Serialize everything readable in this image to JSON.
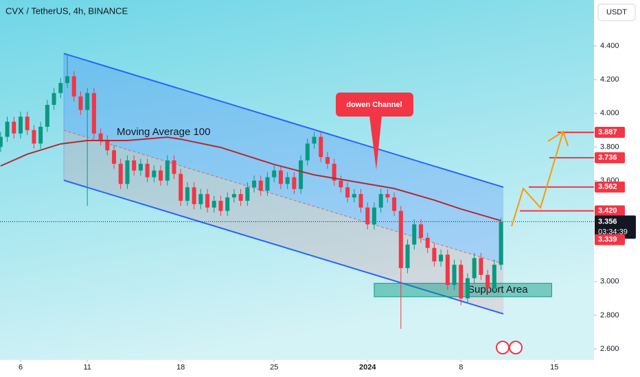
{
  "chart_data": {
    "type": "candlestick",
    "title": "CVX / TetherUS, 4h, BINANCE",
    "currency": "USDT",
    "up_color": "#089981",
    "down_color": "#f23645",
    "grid": false,
    "xlim": [
      -1.544,
      42.97
    ],
    "ylim": [
      2.535,
      4.673
    ],
    "xticks": [
      {
        "value": 0,
        "label": "6"
      },
      {
        "value": 5,
        "label": "11"
      },
      {
        "value": 12,
        "label": "18"
      },
      {
        "value": 19,
        "label": "25"
      },
      {
        "value": 26,
        "label": "2024"
      },
      {
        "value": 33,
        "label": "8"
      },
      {
        "value": 40,
        "label": "15"
      }
    ],
    "yticks": [
      {
        "value": 4.4,
        "label": "4.400"
      },
      {
        "value": 4.2,
        "label": "4.200"
      },
      {
        "value": 4.0,
        "label": "4.000"
      },
      {
        "value": 3.8,
        "label": "3.800"
      },
      {
        "value": 3.6,
        "label": "3.600"
      },
      {
        "value": 3.0,
        "label": "3.000"
      },
      {
        "value": 2.8,
        "label": "2.800"
      },
      {
        "value": 2.6,
        "label": "2.600"
      }
    ],
    "x": [
      -1.5,
      -1,
      -0.5,
      0,
      0.5,
      1,
      1.5,
      2,
      2.5,
      3,
      3.5,
      4,
      4.5,
      5,
      5.5,
      6,
      6.5,
      7,
      7.5,
      8,
      8.5,
      9,
      9.5,
      10,
      10.5,
      11,
      11.5,
      12,
      12.5,
      13,
      13.5,
      14,
      14.5,
      15,
      15.5,
      16,
      16.5,
      17,
      17.5,
      18,
      18.5,
      19,
      19.5,
      20,
      20.5,
      21,
      21.5,
      22,
      22.5,
      23,
      23.5,
      24,
      24.5,
      25,
      25.5,
      26,
      26.5,
      27,
      27.5,
      28,
      28.5,
      29,
      29.5,
      30,
      30.5,
      31,
      31.5,
      32,
      32.5,
      33,
      33.5,
      34,
      34.5,
      35,
      35.5,
      36
    ],
    "open": [
      3.8,
      3.86,
      3.95,
      3.88,
      3.98,
      3.9,
      3.82,
      3.92,
      4.05,
      4.12,
      4.18,
      4.22,
      4.1,
      4.02,
      4.12,
      3.88,
      3.84,
      3.78,
      3.7,
      3.58,
      3.72,
      3.66,
      3.7,
      3.62,
      3.66,
      3.6,
      3.72,
      3.64,
      3.48,
      3.56,
      3.46,
      3.52,
      3.44,
      3.48,
      3.42,
      3.5,
      3.52,
      3.48,
      3.56,
      3.6,
      3.54,
      3.62,
      3.66,
      3.58,
      3.62,
      3.55,
      3.72,
      3.82,
      3.86,
      3.74,
      3.7,
      3.6,
      3.56,
      3.5,
      3.52,
      3.44,
      3.34,
      3.44,
      3.52,
      3.5,
      3.42,
      3.08,
      3.22,
      3.34,
      3.26,
      3.2,
      3.12,
      3.16,
      2.98,
      3.1,
      2.9,
      3.02,
      3.14,
      3.04,
      2.96,
      3.1
    ],
    "high": [
      3.89,
      3.98,
      3.98,
      4.01,
      4.01,
      3.93,
      3.95,
      4.08,
      4.15,
      4.21,
      4.35,
      4.25,
      4.13,
      4.15,
      4.15,
      3.91,
      3.87,
      3.81,
      3.73,
      3.75,
      3.75,
      3.73,
      3.73,
      3.69,
      3.69,
      3.75,
      3.75,
      3.67,
      3.59,
      3.59,
      3.55,
      3.55,
      3.51,
      3.51,
      3.53,
      3.55,
      3.55,
      3.59,
      3.63,
      3.63,
      3.65,
      3.69,
      3.69,
      3.65,
      3.65,
      3.75,
      3.85,
      3.89,
      3.89,
      3.77,
      3.73,
      3.63,
      3.59,
      3.55,
      3.55,
      3.47,
      3.47,
      3.55,
      3.55,
      3.53,
      3.45,
      3.25,
      3.37,
      3.37,
      3.29,
      3.23,
      3.19,
      3.19,
      3.13,
      3.13,
      3.05,
      3.17,
      3.17,
      3.07,
      3.13,
      3.38
    ],
    "low": [
      3.77,
      3.83,
      3.85,
      3.85,
      3.87,
      3.79,
      3.79,
      3.89,
      4.02,
      4.09,
      4.15,
      4.07,
      3.99,
      3.45,
      3.85,
      3.81,
      3.75,
      3.67,
      3.55,
      3.55,
      3.63,
      3.63,
      3.59,
      3.59,
      3.57,
      3.57,
      3.61,
      3.45,
      3.45,
      3.43,
      3.43,
      3.41,
      3.41,
      3.39,
      3.39,
      3.47,
      3.45,
      3.45,
      3.53,
      3.51,
      3.51,
      3.59,
      3.55,
      3.55,
      3.52,
      3.52,
      3.69,
      3.79,
      3.71,
      3.67,
      3.57,
      3.53,
      3.47,
      3.47,
      3.41,
      3.31,
      3.31,
      3.41,
      3.47,
      3.39,
      2.72,
      3.05,
      3.19,
      3.23,
      3.17,
      3.09,
      3.09,
      2.95,
      2.95,
      2.86,
      2.87,
      2.99,
      3.01,
      2.93,
      2.93,
      3.07
    ],
    "close": [
      3.86,
      3.95,
      3.88,
      3.98,
      3.9,
      3.82,
      3.92,
      4.05,
      4.12,
      4.18,
      4.22,
      4.1,
      4.02,
      4.12,
      3.88,
      3.84,
      3.78,
      3.7,
      3.58,
      3.72,
      3.66,
      3.7,
      3.62,
      3.66,
      3.6,
      3.72,
      3.64,
      3.48,
      3.56,
      3.46,
      3.52,
      3.44,
      3.48,
      3.42,
      3.5,
      3.52,
      3.48,
      3.56,
      3.6,
      3.54,
      3.62,
      3.66,
      3.58,
      3.62,
      3.55,
      3.72,
      3.82,
      3.86,
      3.74,
      3.7,
      3.6,
      3.56,
      3.5,
      3.52,
      3.44,
      3.34,
      3.44,
      3.52,
      3.5,
      3.42,
      3.08,
      3.22,
      3.34,
      3.26,
      3.2,
      3.12,
      3.16,
      2.98,
      3.1,
      2.9,
      3.02,
      3.14,
      3.04,
      2.96,
      3.1,
      3.356
    ],
    "moving_average": {
      "label": "Moving Average 100",
      "color": "#b22833",
      "x": [
        -1.5,
        0.5,
        3,
        5,
        8,
        11,
        12,
        15,
        19,
        22,
        25,
        28,
        31,
        33,
        36
      ],
      "values": [
        3.687,
        3.757,
        3.818,
        3.838,
        3.838,
        3.858,
        3.846,
        3.797,
        3.696,
        3.634,
        3.594,
        3.553,
        3.484,
        3.431,
        3.362
      ]
    },
    "channel": {
      "label": "dowen Channel",
      "color": "#2962ff",
      "x": [
        3.24,
        36.18
      ],
      "upper": [
        4.355,
        3.561
      ],
      "middle": [
        3.899,
        3.105
      ],
      "lower": [
        3.602,
        2.808
      ]
    },
    "support": {
      "label": "Support Area",
      "x": [
        26.5,
        39.8
      ],
      "y": [
        2.91,
        2.99
      ]
    },
    "projection": {
      "color": "#ff9800",
      "x": [
        36.8,
        37.67,
        38.96,
        40.66
      ],
      "values": [
        3.329,
        3.553,
        3.439,
        3.891
      ]
    },
    "levels": {
      "color": "#f23645",
      "values": [
        3.887,
        3.736,
        3.562,
        3.42
      ],
      "value_labels": [
        "3.887",
        "3.736",
        "3.562",
        "3.420"
      ]
    },
    "current_price": {
      "value": 3.356,
      "label": "3.356",
      "countdown": "03:34:39"
    },
    "marker_price": {
      "value": 3.339,
      "label": "3.339"
    }
  }
}
